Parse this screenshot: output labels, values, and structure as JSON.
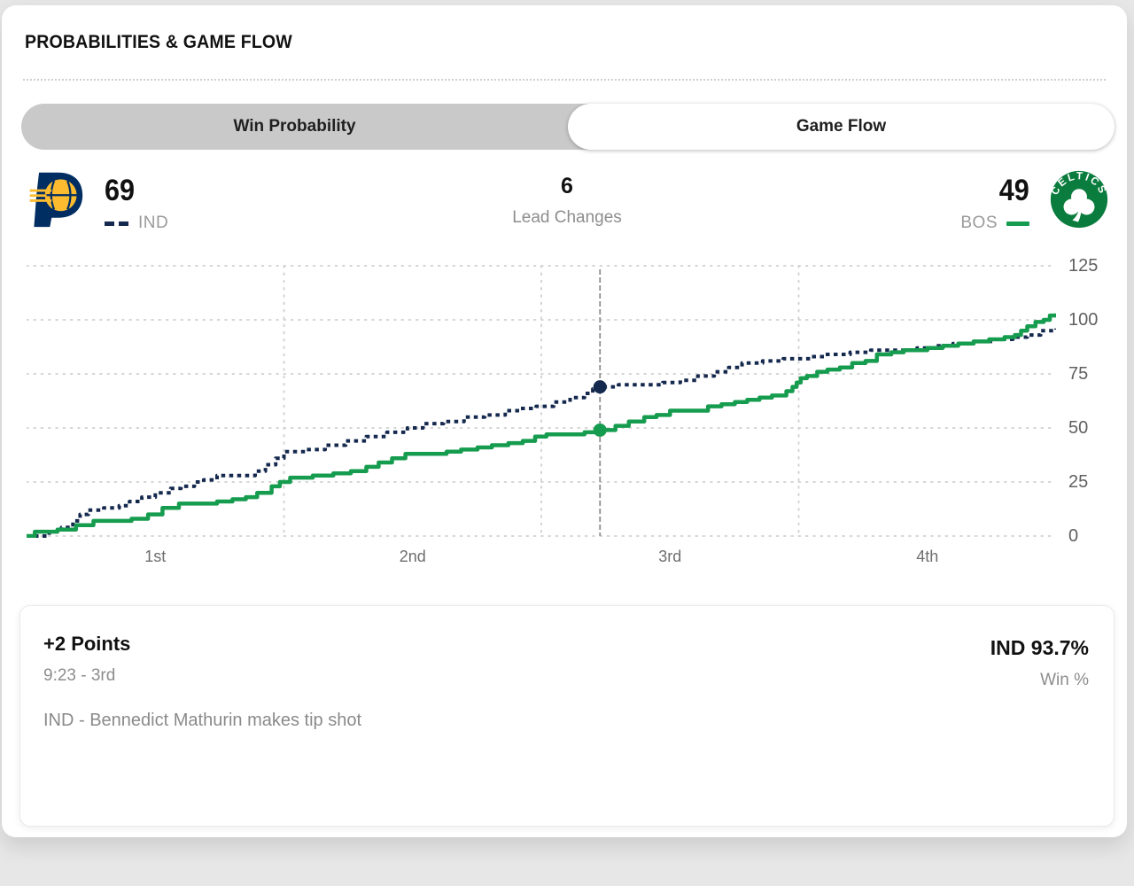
{
  "page": {
    "title": "PROBABILITIES & GAME FLOW"
  },
  "tabs": {
    "items": [
      {
        "label": "Win Probability",
        "selected": false
      },
      {
        "label": "Game Flow",
        "selected": true
      }
    ]
  },
  "scoreboard": {
    "away": {
      "abbr": "IND",
      "score": "69"
    },
    "home": {
      "abbr": "BOS",
      "score": "49",
      "logo_text": "CELTICS"
    },
    "lead_changes": {
      "value": "6",
      "label": "Lead Changes"
    }
  },
  "colors": {
    "ind_navy": "#15294e",
    "bos_green": "#169c4f",
    "pacers_navy": "#002d62",
    "pacers_gold": "#fdbb30",
    "celtics_green": "#0a7c3d",
    "marker_gray": "#8f8f8f",
    "grid_gray": "#cfcfcf"
  },
  "chart_data": {
    "type": "line",
    "title": "Game Flow",
    "xlabel": "",
    "ylabel": "",
    "x_axis": {
      "labels": [
        "1st",
        "2nd",
        "3rd",
        "4th"
      ],
      "boundaries_frac": [
        0,
        0.25,
        0.5,
        0.75,
        1
      ]
    },
    "y_axis": {
      "ticks": [
        0,
        25,
        50,
        75,
        100,
        125
      ],
      "range": [
        0,
        125
      ]
    },
    "grid": "dotted",
    "legend_position": "scoreboard",
    "marker": {
      "frac": 0.557,
      "ind_value": 69,
      "bos_value": 49
    },
    "series": [
      {
        "name": "IND",
        "style": "dotted",
        "color": "#15294e",
        "points": [
          [
            0.0,
            0
          ],
          [
            0.01,
            0
          ],
          [
            0.022,
            2
          ],
          [
            0.034,
            4
          ],
          [
            0.045,
            7
          ],
          [
            0.052,
            10
          ],
          [
            0.06,
            12
          ],
          [
            0.075,
            13
          ],
          [
            0.09,
            14
          ],
          [
            0.1,
            16
          ],
          [
            0.112,
            18
          ],
          [
            0.125,
            20
          ],
          [
            0.14,
            22
          ],
          [
            0.15,
            23
          ],
          [
            0.163,
            25
          ],
          [
            0.172,
            26
          ],
          [
            0.185,
            28
          ],
          [
            0.21,
            28
          ],
          [
            0.222,
            30
          ],
          [
            0.232,
            33
          ],
          [
            0.242,
            36
          ],
          [
            0.25,
            39
          ],
          [
            0.272,
            40
          ],
          [
            0.29,
            42
          ],
          [
            0.31,
            44
          ],
          [
            0.33,
            46
          ],
          [
            0.35,
            48
          ],
          [
            0.37,
            50
          ],
          [
            0.385,
            52
          ],
          [
            0.405,
            53
          ],
          [
            0.425,
            55
          ],
          [
            0.445,
            56
          ],
          [
            0.465,
            58
          ],
          [
            0.48,
            59
          ],
          [
            0.495,
            60
          ],
          [
            0.512,
            62
          ],
          [
            0.528,
            64
          ],
          [
            0.542,
            66
          ],
          [
            0.55,
            68
          ],
          [
            0.557,
            69
          ],
          [
            0.575,
            70
          ],
          [
            0.6,
            70
          ],
          [
            0.618,
            71
          ],
          [
            0.635,
            72
          ],
          [
            0.652,
            74
          ],
          [
            0.668,
            76
          ],
          [
            0.682,
            78
          ],
          [
            0.695,
            80
          ],
          [
            0.715,
            81
          ],
          [
            0.735,
            82
          ],
          [
            0.75,
            82
          ],
          [
            0.762,
            83
          ],
          [
            0.775,
            84
          ],
          [
            0.8,
            85
          ],
          [
            0.82,
            86
          ],
          [
            0.848,
            86
          ],
          [
            0.865,
            87
          ],
          [
            0.882,
            88
          ],
          [
            0.9,
            89
          ],
          [
            0.92,
            90
          ],
          [
            0.94,
            91
          ],
          [
            0.958,
            92
          ],
          [
            0.972,
            93
          ],
          [
            0.985,
            95
          ],
          [
            1.0,
            96
          ]
        ]
      },
      {
        "name": "BOS",
        "style": "solid",
        "color": "#169c4f",
        "points": [
          [
            0.0,
            0
          ],
          [
            0.008,
            2
          ],
          [
            0.03,
            3
          ],
          [
            0.048,
            5
          ],
          [
            0.065,
            7
          ],
          [
            0.09,
            7
          ],
          [
            0.102,
            8
          ],
          [
            0.118,
            10
          ],
          [
            0.132,
            13
          ],
          [
            0.148,
            15
          ],
          [
            0.17,
            15
          ],
          [
            0.185,
            16
          ],
          [
            0.2,
            17
          ],
          [
            0.213,
            18
          ],
          [
            0.224,
            20
          ],
          [
            0.238,
            23
          ],
          [
            0.246,
            25
          ],
          [
            0.256,
            27
          ],
          [
            0.278,
            28
          ],
          [
            0.298,
            29
          ],
          [
            0.315,
            30
          ],
          [
            0.33,
            32
          ],
          [
            0.342,
            34
          ],
          [
            0.355,
            36
          ],
          [
            0.368,
            38
          ],
          [
            0.395,
            38
          ],
          [
            0.408,
            39
          ],
          [
            0.422,
            40
          ],
          [
            0.438,
            41
          ],
          [
            0.452,
            42
          ],
          [
            0.468,
            43
          ],
          [
            0.482,
            44
          ],
          [
            0.494,
            46
          ],
          [
            0.505,
            47
          ],
          [
            0.53,
            47
          ],
          [
            0.542,
            48
          ],
          [
            0.557,
            49
          ],
          [
            0.572,
            51
          ],
          [
            0.585,
            53
          ],
          [
            0.6,
            55
          ],
          [
            0.612,
            56
          ],
          [
            0.625,
            58
          ],
          [
            0.648,
            58
          ],
          [
            0.662,
            60
          ],
          [
            0.675,
            61
          ],
          [
            0.688,
            62
          ],
          [
            0.7,
            63
          ],
          [
            0.712,
            64
          ],
          [
            0.724,
            65
          ],
          [
            0.738,
            67
          ],
          [
            0.744,
            69
          ],
          [
            0.748,
            71
          ],
          [
            0.752,
            73
          ],
          [
            0.758,
            74
          ],
          [
            0.768,
            76
          ],
          [
            0.778,
            77
          ],
          [
            0.79,
            78
          ],
          [
            0.802,
            80
          ],
          [
            0.815,
            81
          ],
          [
            0.826,
            84
          ],
          [
            0.84,
            85
          ],
          [
            0.852,
            86
          ],
          [
            0.875,
            87
          ],
          [
            0.89,
            88
          ],
          [
            0.905,
            89
          ],
          [
            0.92,
            90
          ],
          [
            0.935,
            91
          ],
          [
            0.95,
            92
          ],
          [
            0.96,
            93
          ],
          [
            0.966,
            95
          ],
          [
            0.972,
            97
          ],
          [
            0.98,
            99
          ],
          [
            0.988,
            100
          ],
          [
            0.994,
            102
          ],
          [
            1.0,
            103
          ]
        ]
      }
    ]
  },
  "event": {
    "points_label": "+2 Points",
    "clock": "9:23 - 3rd",
    "description": "IND - Bennedict Mathurin makes tip shot",
    "win_probability": "IND 93.7%",
    "win_label": "Win %"
  }
}
